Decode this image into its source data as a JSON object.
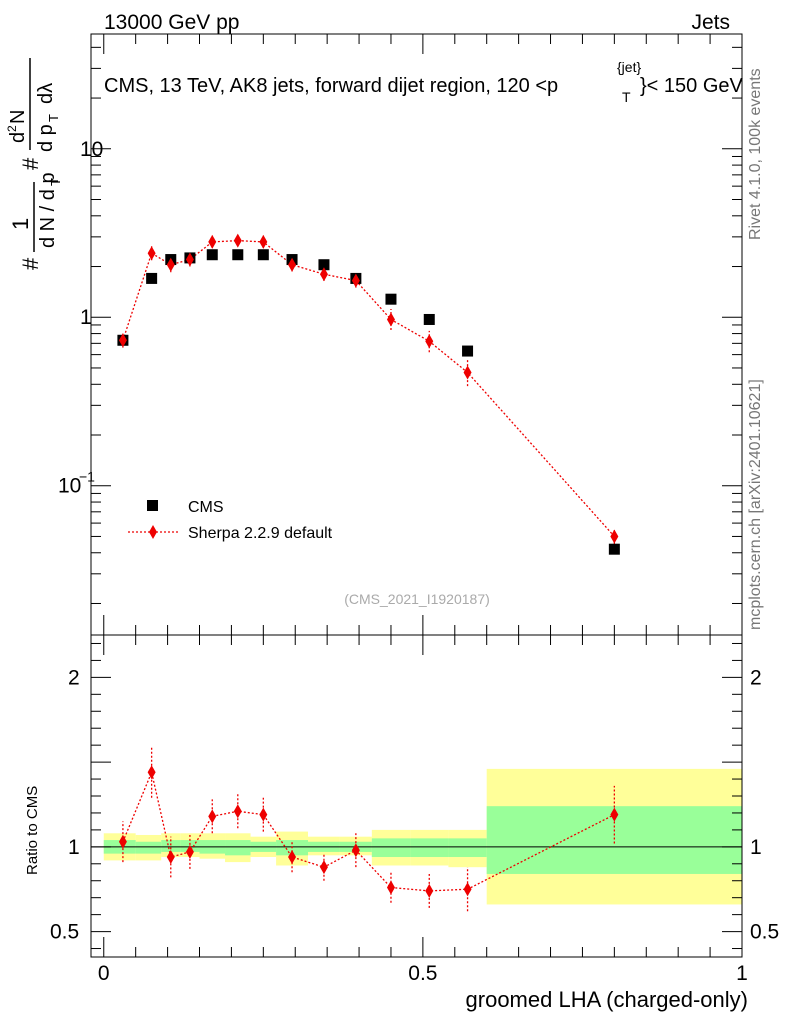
{
  "header": {
    "left": "13000 GeV pp",
    "right": "Jets",
    "plot_title_prefix": "CMS, 13 TeV, AK8 jets, forward dijet region, 120 <p",
    "plot_title_sup": "{jet}",
    "plot_title_sub": "T",
    "plot_title_suffix": "}< 150 GeV"
  },
  "side_labels": {
    "rivet": "Rivet 4.1.0,  100k events",
    "mcplots": "mcplots.cern.ch [arXiv:2401.10621]"
  },
  "ylabel_main": {
    "hash": "#",
    "one": "1",
    "dN": "d N / d p",
    "T": "T",
    "hash2": "#",
    "d2N": "d",
    "two": "2",
    "N": "N",
    "dpT": "d p",
    "T2": "T",
    "dlambda": "dλ"
  },
  "analysis_id": "(CMS_2021_I1920187)",
  "legend": {
    "data_label": "CMS",
    "mc_label": "Sherpa 2.2.9 default"
  },
  "ratio": {
    "ylabel": "Ratio to CMS"
  },
  "xlabel": "groomed LHA (charged-only)",
  "chart_data": [
    {
      "type": "scatter",
      "panel": "main",
      "yscale": "log",
      "xlim": [
        -0.02,
        1.0
      ],
      "ylim": [
        0.013,
        48
      ],
      "y_ticks": [
        {
          "value": 0.1,
          "label": "10",
          "exp": "−1"
        },
        {
          "value": 1,
          "label": "1"
        },
        {
          "value": 10,
          "label": "10"
        }
      ],
      "series": [
        {
          "name": "CMS",
          "marker": "square",
          "color": "#000000",
          "x": [
            0.03,
            0.075,
            0.105,
            0.135,
            0.17,
            0.21,
            0.25,
            0.295,
            0.345,
            0.395,
            0.45,
            0.51,
            0.57,
            0.8
          ],
          "y": [
            0.73,
            1.7,
            2.2,
            2.25,
            2.35,
            2.35,
            2.35,
            2.2,
            2.05,
            1.7,
            1.28,
            0.97,
            0.63,
            0.042
          ]
        },
        {
          "name": "Sherpa 2.2.9 default",
          "marker": "diamond",
          "color": "#ee0000",
          "x": [
            0.03,
            0.075,
            0.105,
            0.135,
            0.17,
            0.21,
            0.25,
            0.295,
            0.345,
            0.395,
            0.45,
            0.51,
            0.57,
            0.8
          ],
          "y": [
            0.73,
            2.4,
            2.05,
            2.2,
            2.8,
            2.85,
            2.8,
            2.05,
            1.8,
            1.65,
            0.97,
            0.72,
            0.47,
            0.05
          ],
          "yerr_low": [
            0.07,
            0.22,
            0.2,
            0.2,
            0.22,
            0.22,
            0.22,
            0.18,
            0.16,
            0.15,
            0.13,
            0.1,
            0.08,
            0.005
          ],
          "yerr_high": [
            0.08,
            0.25,
            0.22,
            0.22,
            0.25,
            0.25,
            0.25,
            0.2,
            0.18,
            0.17,
            0.15,
            0.11,
            0.09,
            0.006
          ]
        }
      ]
    },
    {
      "type": "scatter",
      "panel": "ratio",
      "xlabel": "groomed LHA (charged-only)",
      "ylabel": "Ratio to CMS",
      "xlim": [
        -0.02,
        1.0
      ],
      "ylim": [
        0.35,
        2.25
      ],
      "y_ticks": [
        0.5,
        1,
        2
      ],
      "y_tick_labels": [
        "0.5",
        "1",
        "2"
      ],
      "x_ticks": [
        0,
        0.5,
        1
      ],
      "x_tick_labels": [
        "0",
        "0.5",
        "1"
      ],
      "uncertainty_bands": {
        "edges": [
          0.0,
          0.05,
          0.09,
          0.12,
          0.15,
          0.19,
          0.23,
          0.27,
          0.32,
          0.37,
          0.42,
          0.48,
          0.54,
          0.6,
          1.0
        ],
        "yellow_low": [
          0.92,
          0.92,
          0.94,
          0.94,
          0.93,
          0.91,
          0.94,
          0.89,
          0.95,
          0.95,
          0.89,
          0.89,
          0.88,
          0.66
        ],
        "yellow_high": [
          1.08,
          1.07,
          1.08,
          1.08,
          1.08,
          1.08,
          1.06,
          1.09,
          1.06,
          1.06,
          1.1,
          1.1,
          1.1,
          1.46
        ],
        "green_low": [
          0.96,
          0.96,
          0.97,
          0.97,
          0.96,
          0.95,
          0.97,
          0.95,
          0.97,
          0.97,
          0.94,
          0.94,
          0.94,
          0.84
        ],
        "green_high": [
          1.04,
          1.03,
          1.04,
          1.04,
          1.04,
          1.04,
          1.03,
          1.04,
          1.03,
          1.03,
          1.05,
          1.05,
          1.05,
          1.24
        ]
      },
      "series": [
        {
          "name": "Sherpa 2.2.9 default",
          "marker": "diamond",
          "color": "#ee0000",
          "x": [
            0.03,
            0.075,
            0.105,
            0.135,
            0.17,
            0.21,
            0.25,
            0.295,
            0.345,
            0.395,
            0.45,
            0.51,
            0.57,
            0.8
          ],
          "y": [
            1.03,
            1.44,
            0.94,
            0.97,
            1.18,
            1.21,
            1.19,
            0.94,
            0.88,
            0.98,
            0.76,
            0.74,
            0.75,
            1.19
          ],
          "yerr_low": [
            0.12,
            0.15,
            0.12,
            0.1,
            0.1,
            0.1,
            0.1,
            0.09,
            0.08,
            0.1,
            0.09,
            0.1,
            0.13,
            0.17
          ],
          "yerr_high": [
            0.12,
            0.15,
            0.12,
            0.1,
            0.1,
            0.1,
            0.1,
            0.09,
            0.08,
            0.1,
            0.09,
            0.1,
            0.13,
            0.17
          ]
        }
      ],
      "reference_line": 1
    }
  ]
}
